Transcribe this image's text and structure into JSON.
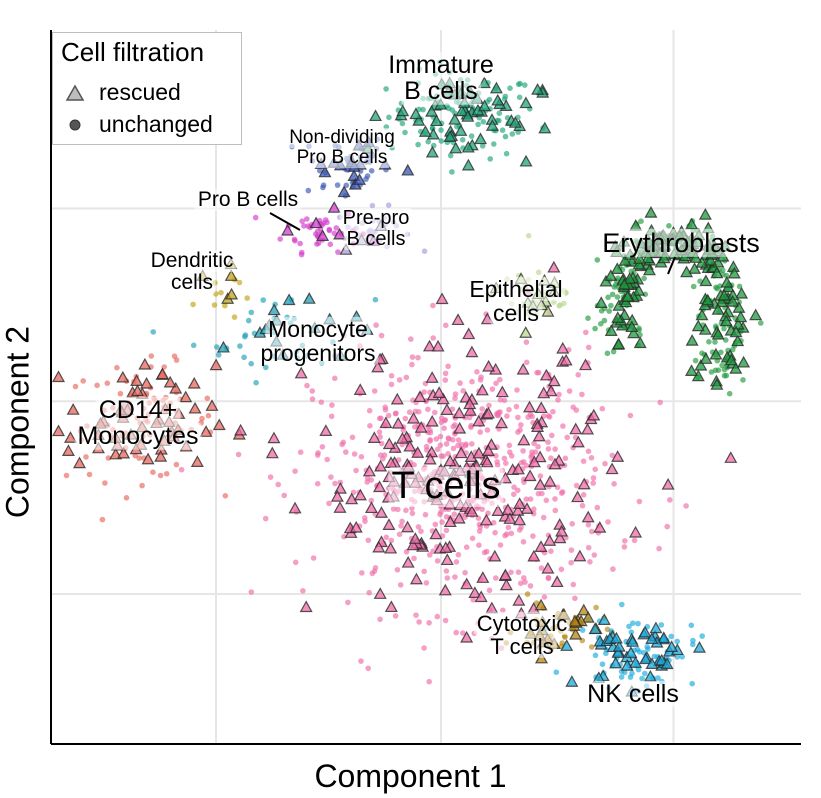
{
  "chart_data": {
    "type": "scatter",
    "xlabel": "Component 1",
    "ylabel": "Component 2",
    "xlim": [
      0,
      100
    ],
    "ylim": [
      0,
      100
    ],
    "grid": true,
    "legend": {
      "title": "Cell filtration",
      "placement": "top-left",
      "entries": [
        {
          "label": "rescued",
          "shape": "triangle"
        },
        {
          "label": "unchanged",
          "shape": "circle"
        }
      ]
    },
    "clusters": [
      {
        "label": "Immature\nB cells",
        "color": "#1fa37a",
        "center": [
          55,
          88
        ],
        "spread": [
          5,
          3
        ],
        "n_circle": 110,
        "n_tri": 55
      },
      {
        "label": "Non-dividing\nPro B cells",
        "color": "#3a55b4",
        "center": [
          39,
          81
        ],
        "spread": [
          3,
          2.5
        ],
        "n_circle": 40,
        "n_tri": 16
      },
      {
        "label": "Pro B cells",
        "color": "#d23ccd",
        "center": [
          36,
          72
        ],
        "spread": [
          2.5,
          1.5
        ],
        "n_circle": 40,
        "n_tri": 6
      },
      {
        "label": "Pre-pro\nB cells",
        "color": "#a99ad6",
        "center": [
          43,
          72
        ],
        "spread": [
          2.5,
          1.5
        ],
        "n_circle": 25,
        "n_tri": 3
      },
      {
        "label": "Dendritic\ncells",
        "color": "#c2a315",
        "center": [
          22,
          63
        ],
        "spread": [
          1.5,
          2
        ],
        "n_circle": 10,
        "n_tri": 5
      },
      {
        "label": "Monocyte\nprogenitors",
        "color": "#1f9fb5",
        "center": [
          31,
          57
        ],
        "spread": [
          6,
          3
        ],
        "n_circle": 35,
        "n_tri": 15
      },
      {
        "label": "CD14+\nMonocytes",
        "color": "#e8675e",
        "center": [
          12,
          45
        ],
        "spread": [
          5,
          4
        ],
        "n_circle": 80,
        "n_tri": 55
      },
      {
        "label": "Epithelial\ncells",
        "color": "#b8d98c",
        "center": [
          65,
          63
        ],
        "spread": [
          3,
          2.5
        ],
        "n_circle": 35,
        "n_tri": 12
      },
      {
        "label": "Erythroblasts",
        "color": "#1e9a3c",
        "center": [
          87,
          58
        ],
        "spread": [
          6,
          8
        ],
        "n_circle": 180,
        "n_tri": 170
      },
      {
        "label": "T cells",
        "color": "#f06ba8",
        "center": [
          55,
          37
        ],
        "spread": [
          10,
          9
        ],
        "n_circle": 560,
        "n_tri": 210
      },
      {
        "label": "Cytotoxic\nT cells",
        "color": "#b58612",
        "center": [
          68,
          16
        ],
        "spread": [
          3,
          2
        ],
        "n_circle": 35,
        "n_tri": 20
      },
      {
        "label": "NK cells",
        "color": "#19a9dc",
        "center": [
          78,
          13
        ],
        "spread": [
          4,
          2.5
        ],
        "n_circle": 70,
        "n_tri": 45
      }
    ]
  }
}
